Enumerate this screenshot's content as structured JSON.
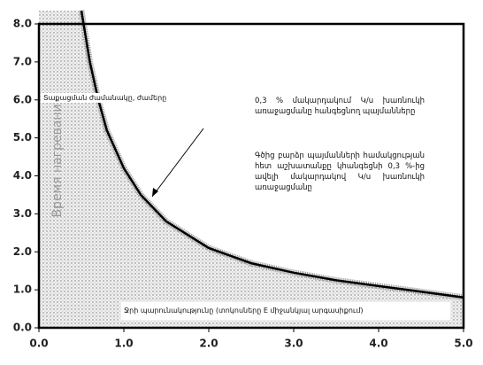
{
  "chart_data": {
    "type": "area",
    "y_label": "Տաքացման ժամանակը, ժամերը",
    "y_label_original": "Время нагревания,",
    "x_label": "Ջրի պարունակությունը (տոկոսները E միջանկյալ արգասիքում)",
    "annotations": [
      "0,3 % մակարդակում Կ/ս խառնուկի առաջացմանը հանգեցնող պայմանները",
      "Գծից բարձր պայմանների համակցության հետ աշխատանքը կհանգեցնի 0,3 %-ից ավելի մակարդակով Կ/ս խառնուկի առաջացմանը"
    ],
    "x": [
      0.5,
      0.6,
      0.7,
      0.8,
      0.9,
      1.0,
      1.2,
      1.5,
      2.0,
      2.5,
      3.0,
      3.5,
      4.0,
      4.5,
      5.0
    ],
    "values": [
      8.35,
      7.0,
      6.0,
      5.2,
      4.7,
      4.2,
      3.5,
      2.8,
      2.1,
      1.7,
      1.45,
      1.25,
      1.1,
      0.95,
      0.8
    ],
    "color": "#000000",
    "xlim": [
      0,
      5.0
    ],
    "ylim": [
      0,
      8.35
    ],
    "xticks": [
      {
        "value": 0,
        "label": "0.0"
      },
      {
        "value": 1,
        "label": "1.0"
      },
      {
        "value": 2,
        "label": "2.0"
      },
      {
        "value": 3,
        "label": "3.0"
      },
      {
        "value": 4,
        "label": "4.0"
      },
      {
        "value": 5,
        "label": "5.0"
      }
    ],
    "yticks": [
      {
        "value": 0,
        "label": "0.0"
      },
      {
        "value": 1,
        "label": "1.0"
      },
      {
        "value": 2,
        "label": "2.0"
      },
      {
        "value": 3,
        "label": "3.0"
      },
      {
        "value": 4,
        "label": "4.0"
      },
      {
        "value": 5,
        "label": "5.0"
      },
      {
        "value": 6,
        "label": "6.0"
      },
      {
        "value": 7,
        "label": "7.0"
      },
      {
        "value": 8,
        "label": "8.0"
      }
    ],
    "grid": true
  }
}
